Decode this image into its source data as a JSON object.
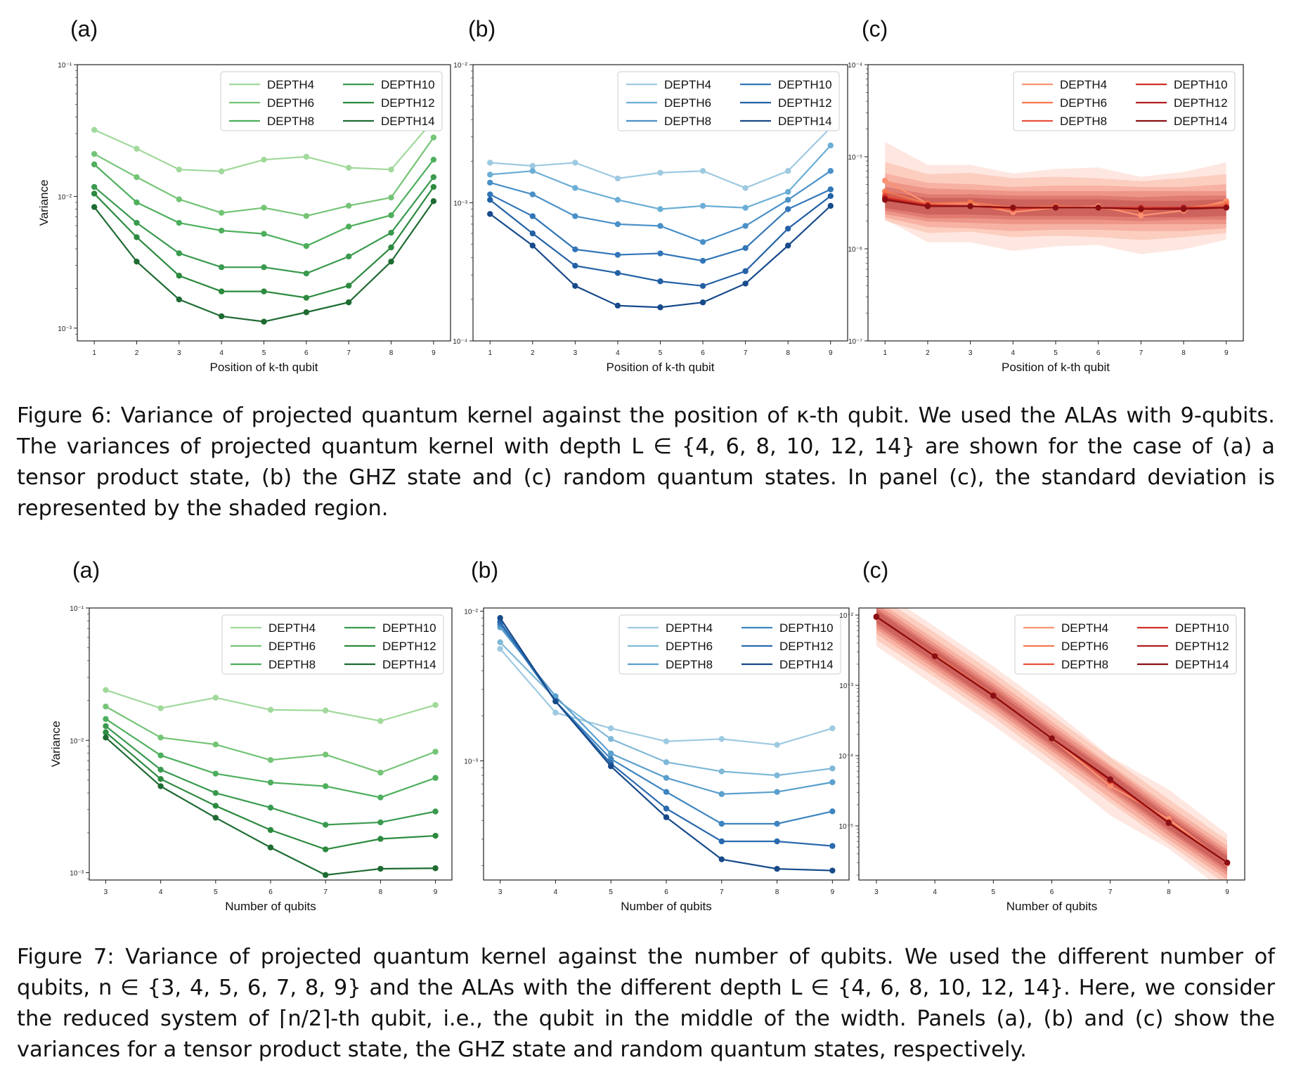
{
  "figure6": {
    "caption": "Figure 6: Variance of projected quantum kernel against the position of κ-th qubit. We used the ALAs with 9-qubits. The variances of projected quantum kernel with depth L ∈ {4, 6, 8, 10, 12, 14} are shown for the case of (a) a tensor product state, (b) the GHZ state and (c) random quantum states. In panel (c), the standard deviation is represented by the shaded region."
  },
  "figure7": {
    "caption": "Figure 7: Variance of projected quantum kernel against the number of qubits. We used the different number of qubits, n ∈ {3, 4, 5, 6, 7, 8, 9} and the ALAs with the different depth L ∈ {4, 6, 8, 10, 12, 14}. Here, we consider the reduced system of ⌈n/2⌉-th qubit, i.e., the qubit in the middle of the width. Panels (a), (b) and (c) show the variances for a tensor product state, the GHZ state and random quantum states, respectively."
  },
  "chart_data": [
    {
      "type": "line",
      "panel": "(a)",
      "figure": "Figure 6",
      "xlabel": "Position of k-th qubit",
      "ylabel": "Variance",
      "yscale": "log",
      "ylim": [
        0.0008,
        0.1
      ],
      "xlim": [
        0.6,
        9.4
      ],
      "x": [
        1,
        2,
        3,
        4,
        5,
        6,
        7,
        8,
        9
      ],
      "yticks": [
        "10⁻¹",
        "10⁻²",
        "10⁻³"
      ],
      "legend_position": "top-right",
      "colors": [
        "#a1d99b",
        "#74c476",
        "#4daf5c",
        "#3a9a4f",
        "#2b8a3e",
        "#1e6b32"
      ],
      "series": [
        {
          "name": "DEPTH4",
          "values": [
            0.032,
            0.023,
            0.016,
            0.0155,
            0.019,
            0.02,
            0.0165,
            0.016,
            0.038
          ]
        },
        {
          "name": "DEPTH6",
          "values": [
            0.021,
            0.014,
            0.0095,
            0.0075,
            0.0082,
            0.0071,
            0.0085,
            0.0098,
            0.028
          ]
        },
        {
          "name": "DEPTH8",
          "values": [
            0.0175,
            0.009,
            0.0063,
            0.0055,
            0.0052,
            0.0042,
            0.0059,
            0.0072,
            0.019
          ]
        },
        {
          "name": "DEPTH10",
          "values": [
            0.0118,
            0.0063,
            0.0037,
            0.0029,
            0.0029,
            0.0026,
            0.0035,
            0.0053,
            0.014
          ]
        },
        {
          "name": "DEPTH12",
          "values": [
            0.0105,
            0.0049,
            0.0025,
            0.0019,
            0.0019,
            0.0017,
            0.0021,
            0.0041,
            0.0118
          ]
        },
        {
          "name": "DEPTH14",
          "values": [
            0.0083,
            0.0032,
            0.00165,
            0.00123,
            0.00112,
            0.00132,
            0.00157,
            0.0032,
            0.0092
          ]
        }
      ]
    },
    {
      "type": "line",
      "panel": "(b)",
      "figure": "Figure 6",
      "xlabel": "Position of k-th qubit",
      "ylabel": "",
      "yscale": "log",
      "ylim": [
        0.0001,
        0.01
      ],
      "xlim": [
        0.6,
        9.4
      ],
      "x": [
        1,
        2,
        3,
        4,
        5,
        6,
        7,
        8,
        9
      ],
      "yticks": [
        "10⁻²",
        "10⁻³",
        "10⁻⁴"
      ],
      "legend_position": "top-right",
      "colors": [
        "#9ecae1",
        "#6baed6",
        "#4a90c8",
        "#3276b8",
        "#2361a5",
        "#174a8a"
      ],
      "series": [
        {
          "name": "DEPTH4",
          "values": [
            0.00195,
            0.00185,
            0.00195,
            0.0015,
            0.00165,
            0.0017,
            0.00128,
            0.0017,
            0.0035
          ]
        },
        {
          "name": "DEPTH6",
          "values": [
            0.0016,
            0.0017,
            0.00128,
            0.00105,
            0.0009,
            0.00095,
            0.00092,
            0.0012,
            0.0026
          ]
        },
        {
          "name": "DEPTH8",
          "values": [
            0.0014,
            0.00115,
            0.0008,
            0.0007,
            0.00068,
            0.00052,
            0.00068,
            0.00105,
            0.0017
          ]
        },
        {
          "name": "DEPTH10",
          "values": [
            0.00115,
            0.0008,
            0.00046,
            0.00042,
            0.00043,
            0.00038,
            0.00047,
            0.0009,
            0.00125
          ]
        },
        {
          "name": "DEPTH12",
          "values": [
            0.00105,
            0.0006,
            0.00035,
            0.00031,
            0.00027,
            0.00025,
            0.00032,
            0.00065,
            0.00112
          ]
        },
        {
          "name": "DEPTH14",
          "values": [
            0.00083,
            0.00049,
            0.00025,
            0.00018,
            0.000175,
            0.00019,
            0.00026,
            0.00049,
            0.00095
          ]
        }
      ]
    },
    {
      "type": "line",
      "panel": "(c)",
      "figure": "Figure 6",
      "xlabel": "Position of k-th qubit",
      "ylabel": "",
      "yscale": "log",
      "ylim": [
        1e-07,
        0.0001
      ],
      "xlim": [
        0.6,
        9.4
      ],
      "x": [
        1,
        2,
        3,
        4,
        5,
        6,
        7,
        8,
        9
      ],
      "yticks": [
        "10⁻⁴",
        "10⁻⁵",
        "10⁻⁶",
        "10⁻⁷"
      ],
      "legend_position": "top-right",
      "shaded_std": true,
      "colors": [
        "#fc9272",
        "#f5774f",
        "#e8503a",
        "#cf3029",
        "#b31c1f",
        "#8a0f14"
      ],
      "series": [
        {
          "name": "DEPTH4",
          "values": [
            5.5e-06,
            3.1e-06,
            3.1e-06,
            2.5e-06,
            2.8e-06,
            2.9e-06,
            2.3e-06,
            2.6e-06,
            3.3e-06
          ]
        },
        {
          "name": "DEPTH6",
          "values": [
            4.2e-06,
            3.1e-06,
            3.2e-06,
            2.8e-06,
            2.9e-06,
            2.8e-06,
            2.6e-06,
            2.8e-06,
            3.1e-06
          ]
        },
        {
          "name": "DEPTH8",
          "values": [
            3.8e-06,
            3e-06,
            2.9e-06,
            2.7e-06,
            2.8e-06,
            2.8e-06,
            2.7e-06,
            2.7e-06,
            2.9e-06
          ]
        },
        {
          "name": "DEPTH10",
          "values": [
            3.6e-06,
            3e-06,
            2.9e-06,
            2.8e-06,
            2.8e-06,
            2.8e-06,
            2.8e-06,
            2.8e-06,
            2.8e-06
          ]
        },
        {
          "name": "DEPTH12",
          "values": [
            3.5e-06,
            2.9e-06,
            2.9e-06,
            2.8e-06,
            2.8e-06,
            2.8e-06,
            2.7e-06,
            2.8e-06,
            2.8e-06
          ]
        },
        {
          "name": "DEPTH14",
          "values": [
            3.4e-06,
            2.9e-06,
            2.9e-06,
            2.8e-06,
            2.8e-06,
            2.8e-06,
            2.7e-06,
            2.7e-06,
            2.8e-06
          ]
        }
      ]
    },
    {
      "type": "line",
      "panel": "(a)",
      "figure": "Figure 7",
      "xlabel": "Number of qubits",
      "ylabel": "Variance",
      "yscale": "log",
      "ylim": [
        0.00088,
        0.1
      ],
      "xlim": [
        2.7,
        9.3
      ],
      "x": [
        3,
        4,
        5,
        6,
        7,
        8,
        9
      ],
      "yticks": [
        "10⁻¹",
        "10⁻²",
        "10⁻³"
      ],
      "legend_position": "top-right",
      "colors": [
        "#a1d99b",
        "#74c476",
        "#4daf5c",
        "#3a9a4f",
        "#2b8a3e",
        "#1e6b32"
      ],
      "series": [
        {
          "name": "DEPTH4",
          "values": [
            0.024,
            0.0175,
            0.021,
            0.017,
            0.0168,
            0.014,
            0.0185
          ]
        },
        {
          "name": "DEPTH6",
          "values": [
            0.018,
            0.0105,
            0.0093,
            0.0071,
            0.0078,
            0.0057,
            0.0082
          ]
        },
        {
          "name": "DEPTH8",
          "values": [
            0.0145,
            0.0077,
            0.0056,
            0.0048,
            0.0045,
            0.0037,
            0.0052
          ]
        },
        {
          "name": "DEPTH10",
          "values": [
            0.0128,
            0.006,
            0.004,
            0.0031,
            0.0023,
            0.0024,
            0.0029
          ]
        },
        {
          "name": "DEPTH12",
          "values": [
            0.0115,
            0.0051,
            0.0032,
            0.0021,
            0.0015,
            0.0018,
            0.0019
          ]
        },
        {
          "name": "DEPTH14",
          "values": [
            0.0105,
            0.0045,
            0.0026,
            0.00155,
            0.00096,
            0.00107,
            0.00108
          ]
        }
      ]
    },
    {
      "type": "line",
      "panel": "(b)",
      "figure": "Figure 7",
      "xlabel": "Number of qubits",
      "ylabel": "",
      "yscale": "log",
      "ylim": [
        0.00016,
        0.0105
      ],
      "xlim": [
        2.7,
        9.3
      ],
      "x": [
        3,
        4,
        5,
        6,
        7,
        8,
        9
      ],
      "yticks": [
        "10⁻²",
        "10⁻³"
      ],
      "legend_position": "top-right",
      "colors": [
        "#9ecae1",
        "#7fb8d8",
        "#5a9fcd",
        "#3d84c0",
        "#2a6aae",
        "#174a8a"
      ],
      "series": [
        {
          "name": "DEPTH4",
          "values": [
            0.0056,
            0.0021,
            0.00165,
            0.00135,
            0.0014,
            0.00128,
            0.00165
          ]
        },
        {
          "name": "DEPTH6",
          "values": [
            0.0062,
            0.0026,
            0.0014,
            0.00098,
            0.00085,
            0.0008,
            0.00089
          ]
        },
        {
          "name": "DEPTH8",
          "values": [
            0.0078,
            0.0027,
            0.00112,
            0.00077,
            0.0006,
            0.00062,
            0.00072
          ]
        },
        {
          "name": "DEPTH10",
          "values": [
            0.0082,
            0.0025,
            0.00103,
            0.00062,
            0.00038,
            0.00038,
            0.00046
          ]
        },
        {
          "name": "DEPTH12",
          "values": [
            0.0085,
            0.0025,
            0.00096,
            0.00048,
            0.00029,
            0.00029,
            0.00027
          ]
        },
        {
          "name": "DEPTH14",
          "values": [
            0.009,
            0.0025,
            0.00092,
            0.00042,
            0.00022,
            0.00019,
            0.000185
          ]
        }
      ]
    },
    {
      "type": "line",
      "panel": "(c)",
      "figure": "Figure 7",
      "xlabel": "Number of qubits",
      "ylabel": "",
      "yscale": "log",
      "ylim": [
        1.7e-06,
        0.0126
      ],
      "xlim": [
        2.7,
        9.3
      ],
      "x": [
        3,
        4,
        5,
        6,
        7,
        8,
        9
      ],
      "yticks": [
        "10⁻²",
        "10⁻³",
        "10⁻⁴",
        "10⁻⁵"
      ],
      "legend_position": "top-right",
      "shaded_std": true,
      "colors": [
        "#fc9272",
        "#f5774f",
        "#e8503a",
        "#cf3029",
        "#b31c1f",
        "#8a0f14"
      ],
      "series": [
        {
          "name": "DEPTH4",
          "values": [
            0.0095,
            0.0026,
            0.00071,
            0.000175,
            3.7e-05,
            1.25e-05,
            2.9e-06
          ]
        },
        {
          "name": "DEPTH6",
          "values": [
            0.0093,
            0.0027,
            0.00073,
            0.000178,
            4.5e-05,
            1.15e-05,
            3e-06
          ]
        },
        {
          "name": "DEPTH8",
          "values": [
            0.0094,
            0.0026,
            0.00072,
            0.000176,
            4.3e-05,
            1.1e-05,
            3e-06
          ]
        },
        {
          "name": "DEPTH10",
          "values": [
            0.0095,
            0.0026,
            0.00071,
            0.000176,
            4.6e-05,
            1.1e-05,
            3e-06
          ]
        },
        {
          "name": "DEPTH12",
          "values": [
            0.0094,
            0.0026,
            0.00072,
            0.000176,
            4.5e-05,
            1.12e-05,
            3e-06
          ]
        },
        {
          "name": "DEPTH14",
          "values": [
            0.0095,
            0.0026,
            0.00071,
            0.000176,
            4.6e-05,
            1.1e-05,
            3e-06
          ]
        }
      ]
    }
  ]
}
